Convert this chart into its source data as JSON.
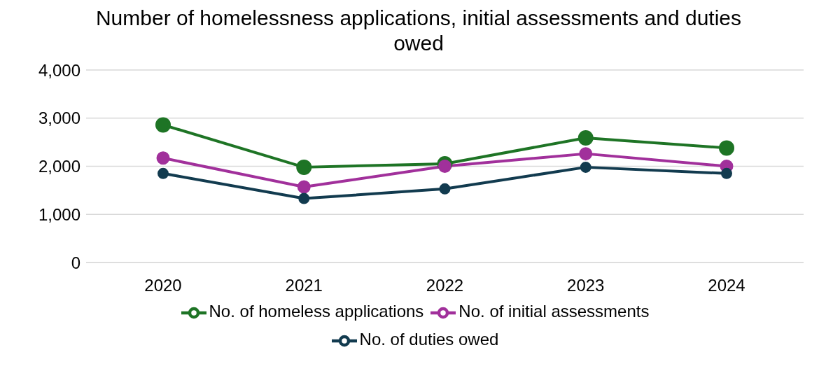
{
  "chart_data": {
    "type": "line",
    "title": "Number of homelessness applications, initial assessments and duties owed",
    "categories": [
      "2020",
      "2021",
      "2022",
      "2023",
      "2024"
    ],
    "series": [
      {
        "name": "No. of homeless applications",
        "color": "#1e7425",
        "values": [
          2860,
          1980,
          2050,
          2590,
          2380
        ]
      },
      {
        "name": "No. of initial assessments",
        "color": "#a1309b",
        "values": [
          2170,
          1570,
          2000,
          2260,
          2000
        ]
      },
      {
        "name": "No. of duties owed",
        "color": "#123b4f",
        "values": [
          1850,
          1330,
          1530,
          1980,
          1850
        ]
      }
    ],
    "ylim": [
      0,
      4000
    ],
    "yticks": [
      0,
      {
        "value": 1000,
        "label": "1,000"
      },
      {
        "value": 2000,
        "label": "2,000"
      },
      {
        "value": 3000,
        "label": "3,000"
      },
      {
        "value": 4000,
        "label": "4,000"
      }
    ],
    "grid": "y",
    "legend": "bottom",
    "marker": "circle",
    "line_style": "solid"
  }
}
